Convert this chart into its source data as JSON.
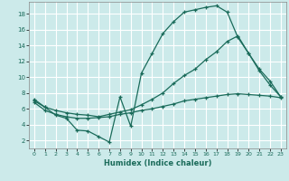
{
  "xlabel": "Humidex (Indice chaleur)",
  "bg_color": "#cceaea",
  "line_color": "#1a6b5a",
  "grid_color": "#ffffff",
  "xlim": [
    -0.5,
    23.5
  ],
  "ylim": [
    1.0,
    19.5
  ],
  "yticks": [
    2,
    4,
    6,
    8,
    10,
    12,
    14,
    16,
    18
  ],
  "xticks": [
    0,
    1,
    2,
    3,
    4,
    5,
    6,
    7,
    8,
    9,
    10,
    11,
    12,
    13,
    14,
    15,
    16,
    17,
    18,
    19,
    20,
    21,
    22,
    23
  ],
  "curve1_x": [
    0,
    1,
    2,
    3,
    4,
    5,
    6,
    7,
    8,
    9,
    10,
    11,
    12,
    13,
    14,
    15,
    16,
    17,
    18,
    19,
    20,
    21,
    22,
    23
  ],
  "curve1_y": [
    7.2,
    6.2,
    5.2,
    4.8,
    3.3,
    3.2,
    2.5,
    1.8,
    7.5,
    3.8,
    10.5,
    13.0,
    15.5,
    17.0,
    18.2,
    18.5,
    18.8,
    19.0,
    18.2,
    15.0,
    13.0,
    10.8,
    9.0,
    7.5
  ],
  "curve2_x": [
    0,
    1,
    2,
    3,
    4,
    5,
    6,
    7,
    8,
    9,
    10,
    11,
    12,
    13,
    14,
    15,
    16,
    17,
    18,
    19,
    20,
    21,
    22,
    23
  ],
  "curve2_y": [
    6.8,
    5.8,
    5.3,
    5.0,
    4.8,
    4.8,
    4.9,
    5.0,
    5.3,
    5.5,
    5.8,
    6.0,
    6.3,
    6.6,
    7.0,
    7.2,
    7.4,
    7.6,
    7.8,
    7.9,
    7.8,
    7.7,
    7.6,
    7.4
  ],
  "curve3_x": [
    0,
    1,
    2,
    3,
    4,
    5,
    6,
    7,
    8,
    9,
    10,
    11,
    12,
    13,
    14,
    15,
    16,
    17,
    18,
    19,
    20,
    21,
    22,
    23
  ],
  "curve3_y": [
    7.0,
    6.2,
    5.8,
    5.5,
    5.3,
    5.2,
    5.0,
    5.3,
    5.6,
    5.9,
    6.5,
    7.2,
    8.0,
    9.2,
    10.2,
    11.0,
    12.2,
    13.2,
    14.5,
    15.2,
    13.0,
    11.0,
    9.5,
    7.5
  ]
}
